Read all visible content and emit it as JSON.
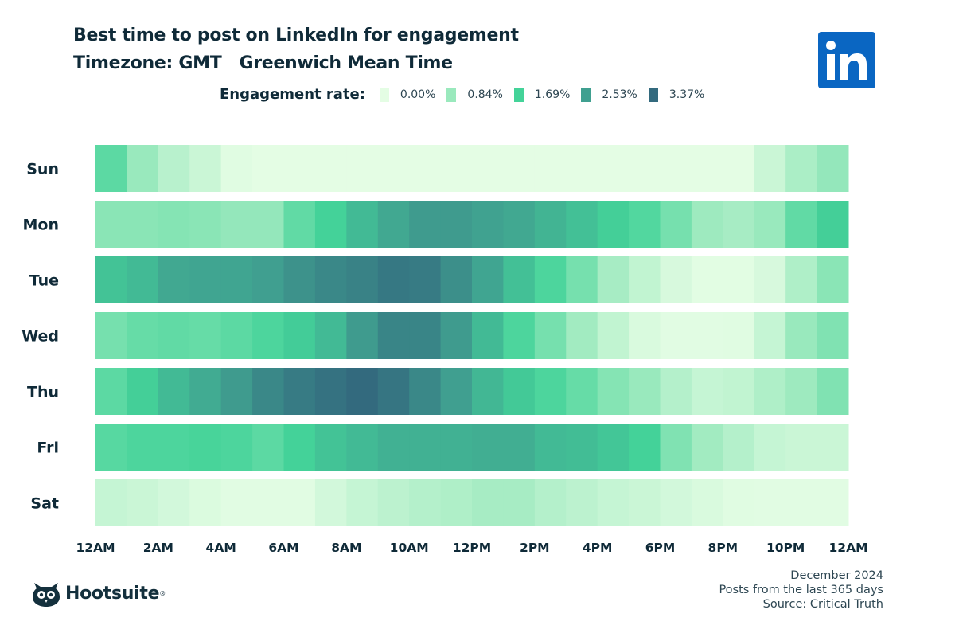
{
  "header": {
    "title": "Best time to post on LinkedIn for engagement",
    "subtitle": "Timezone: GMT   Greenwich Mean Time"
  },
  "logos": {
    "linkedin": "in",
    "hootsuite": "Hootsuite"
  },
  "footer": {
    "date": "December 2024",
    "period": "Posts from the last 365 days",
    "source": "Source: Critical Truth"
  },
  "colors": {
    "scale": [
      "#e4fde4",
      "#9ae9bd",
      "#44d399",
      "#40a090",
      "#336a7e"
    ],
    "text": "#0f2a38",
    "linkedin": "#0a66c2"
  },
  "chart_data": {
    "type": "heatmap",
    "title": "Best time to post on LinkedIn for engagement",
    "legend_title": "Engagement rate:",
    "legend": [
      "0.00%",
      "0.84%",
      "1.69%",
      "2.53%",
      "3.37%"
    ],
    "legend_placement": "top",
    "color_range": [
      0,
      3.37
    ],
    "unit": "%",
    "rows": [
      "Sun",
      "Mon",
      "Tue",
      "Wed",
      "Thu",
      "Fri",
      "Sat"
    ],
    "x_tick_labels": [
      "12AM",
      "2AM",
      "4AM",
      "6AM",
      "8AM",
      "10AM",
      "12PM",
      "2PM",
      "4PM",
      "6PM",
      "8PM",
      "10PM",
      "12AM"
    ],
    "hours": 24,
    "values": [
      [
        1.45,
        0.85,
        0.5,
        0.3,
        0.05,
        0,
        0,
        0,
        0,
        0,
        0,
        0,
        0,
        0,
        0,
        0,
        0,
        0,
        0,
        0,
        0,
        0.3,
        0.65,
        0.9
      ],
      [
        1.0,
        1.0,
        1.05,
        1.0,
        0.9,
        0.9,
        1.4,
        1.7,
        2.1,
        2.4,
        2.6,
        2.6,
        2.5,
        2.4,
        2.2,
        2.0,
        1.75,
        1.55,
        1.2,
        0.8,
        0.7,
        0.85,
        1.4,
        1.75
      ],
      [
        1.95,
        2.1,
        2.4,
        2.45,
        2.45,
        2.55,
        2.75,
        2.9,
        3.0,
        3.15,
        3.1,
        2.8,
        2.45,
        2.0,
        1.6,
        1.2,
        0.7,
        0.4,
        0.15,
        0.02,
        0.02,
        0.15,
        0.6,
        1.0
      ],
      [
        1.2,
        1.35,
        1.4,
        1.35,
        1.45,
        1.6,
        1.8,
        2.1,
        2.6,
        2.95,
        2.95,
        2.6,
        2.1,
        1.6,
        1.2,
        0.75,
        0.4,
        0.12,
        0.03,
        0.03,
        0.05,
        0.35,
        0.85,
        1.1
      ],
      [
        1.45,
        1.75,
        2.1,
        2.35,
        2.6,
        2.9,
        3.1,
        3.25,
        3.37,
        3.2,
        2.9,
        2.55,
        2.15,
        1.85,
        1.6,
        1.35,
        1.05,
        0.85,
        0.55,
        0.35,
        0.4,
        0.6,
        0.8,
        1.1
      ],
      [
        1.5,
        1.6,
        1.6,
        1.65,
        1.6,
        1.45,
        1.7,
        1.95,
        2.1,
        2.25,
        2.25,
        2.25,
        2.3,
        2.3,
        2.1,
        2.05,
        1.9,
        1.7,
        1.1,
        0.75,
        0.55,
        0.35,
        0.3,
        0.3
      ],
      [
        0.35,
        0.3,
        0.2,
        0.1,
        0.03,
        0.03,
        0.03,
        0.2,
        0.35,
        0.45,
        0.55,
        0.6,
        0.7,
        0.7,
        0.55,
        0.45,
        0.35,
        0.3,
        0.2,
        0.12,
        0.05,
        0.03,
        0.03,
        0.03
      ]
    ]
  }
}
